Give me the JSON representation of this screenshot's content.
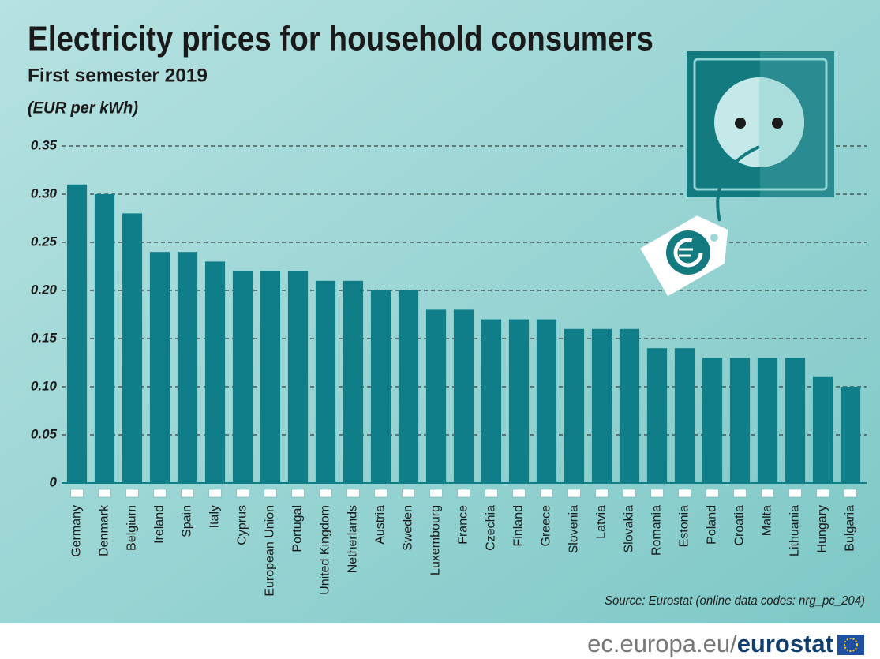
{
  "chart_data": {
    "type": "bar",
    "title": "Electricity prices for household consumers",
    "subtitle": "First semester 2019",
    "y_label": "(EUR per kWh)",
    "source": "Source: Eurostat (online data codes: nrg_pc_204)",
    "footer_site": "ec.europa.eu/",
    "footer_brand": "eurostat",
    "categories": [
      "Germany",
      "Denmark",
      "Belgium",
      "Ireland",
      "Spain",
      "Italy",
      "Cyprus",
      "European Union",
      "Portugal",
      "United Kingdom",
      "Netherlands",
      "Austria",
      "Sweden",
      "Luxembourg",
      "France",
      "Czechia",
      "Finland",
      "Greece",
      "Slovenia",
      "Latvia",
      "Slovakia",
      "Romania",
      "Estonia",
      "Poland",
      "Croatia",
      "Malta",
      "Lithuania",
      "Hungary",
      "Bulgaria"
    ],
    "values": [
      0.31,
      0.3,
      0.28,
      0.24,
      0.24,
      0.23,
      0.22,
      0.22,
      0.22,
      0.21,
      0.21,
      0.2,
      0.2,
      0.18,
      0.18,
      0.17,
      0.17,
      0.17,
      0.16,
      0.16,
      0.16,
      0.14,
      0.14,
      0.13,
      0.13,
      0.13,
      0.13,
      0.11,
      0.1
    ],
    "color": "#0f7e88",
    "ylim": [
      0,
      0.35
    ],
    "yticks": [
      0,
      0.05,
      {
        "value": 0.1,
        "label": "0.10"
      },
      0.15,
      {
        "value": 0.2,
        "label": "0.20"
      },
      0.25,
      {
        "value": 0.3,
        "label": "0.30"
      },
      0.35
    ],
    "grid": true
  }
}
